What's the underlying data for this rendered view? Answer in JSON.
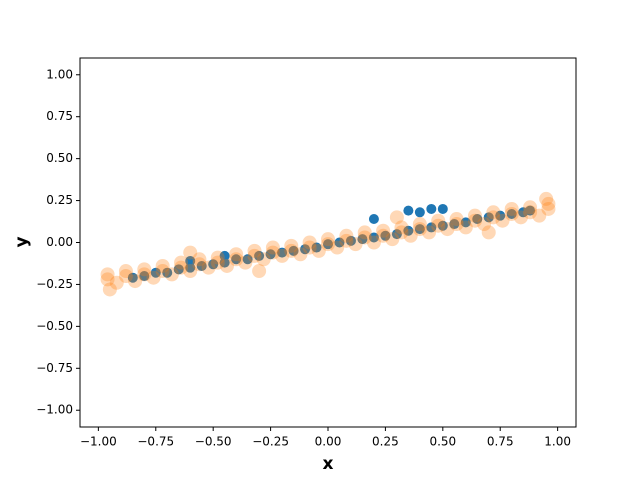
{
  "chart_data": {
    "type": "scatter",
    "x_label": "x",
    "y_label": "y",
    "xlim": [
      -1.08,
      1.08
    ],
    "ylim": [
      -1.1,
      1.1
    ],
    "xticks": [
      {
        "value": -1,
        "label": "−1.00"
      },
      {
        "value": -0.75,
        "label": "−0.75"
      },
      {
        "value": -0.5,
        "label": "−0.50"
      },
      {
        "value": -0.25,
        "label": "−0.25"
      },
      {
        "value": 0,
        "label": "0.00"
      },
      {
        "value": 0.25,
        "label": "0.25"
      },
      {
        "value": 0.5,
        "label": "0.50"
      },
      {
        "value": 0.75,
        "label": "0.75"
      },
      {
        "value": 1,
        "label": "1.00"
      }
    ],
    "yticks": [
      {
        "value": -1,
        "label": "−1.00"
      },
      {
        "value": -0.75,
        "label": "−0.75"
      },
      {
        "value": -0.5,
        "label": "−0.50"
      },
      {
        "value": -0.25,
        "label": "−0.25"
      },
      {
        "value": 0,
        "label": "0.00"
      },
      {
        "value": 0.25,
        "label": "0.25"
      },
      {
        "value": 0.5,
        "label": "0.50"
      },
      {
        "value": 0.75,
        "label": "0.75"
      },
      {
        "value": 1,
        "label": "1.00"
      }
    ],
    "grid": false,
    "series": [
      {
        "color": "#1f77b4",
        "alpha": 1,
        "x": [
          -0.85,
          -0.8,
          -0.75,
          -0.7,
          -0.65,
          -0.6,
          -0.55,
          -0.5,
          -0.45,
          -0.4,
          -0.35,
          -0.3,
          -0.25,
          -0.2,
          -0.15,
          -0.1,
          -0.05,
          0,
          0.05,
          0.1,
          0.15,
          0.2,
          0.25,
          0.3,
          0.35,
          0.4,
          0.45,
          0.5,
          0.55,
          0.6,
          0.65,
          0.7,
          0.75,
          0.8,
          0.85,
          0.88,
          0.2,
          0.35,
          0.4,
          0.45,
          0.5,
          -0.6,
          -0.45
        ],
        "y": [
          -0.21,
          -0.2,
          -0.18,
          -0.18,
          -0.16,
          -0.15,
          -0.14,
          -0.13,
          -0.12,
          -0.1,
          -0.1,
          -0.08,
          -0.07,
          -0.06,
          -0.05,
          -0.04,
          -0.03,
          -0.01,
          0,
          0.01,
          0.02,
          0.03,
          0.04,
          0.05,
          0.07,
          0.08,
          0.09,
          0.1,
          0.11,
          0.12,
          0.14,
          0.15,
          0.16,
          0.17,
          0.18,
          0.19,
          0.14,
          0.19,
          0.18,
          0.2,
          0.2,
          -0.11,
          -0.08
        ]
      },
      {
        "color": "#ff7f0e",
        "alpha": 0.3,
        "x": [
          -0.96,
          -0.88,
          -0.8,
          -0.72,
          -0.64,
          -0.56,
          -0.48,
          -0.4,
          -0.32,
          -0.24,
          -0.16,
          -0.08,
          0,
          0.08,
          0.16,
          0.24,
          0.32,
          0.4,
          0.48,
          0.56,
          0.64,
          0.72,
          0.8,
          0.88,
          0.96,
          -0.92,
          -0.84,
          -0.76,
          -0.68,
          -0.6,
          -0.52,
          -0.44,
          -0.36,
          -0.28,
          -0.2,
          -0.12,
          -0.04,
          0.04,
          0.12,
          0.2,
          0.28,
          0.36,
          0.44,
          0.52,
          0.6,
          0.68,
          0.76,
          0.84,
          0.92,
          -0.96,
          -0.88,
          -0.8,
          -0.72,
          -0.64,
          -0.56,
          -0.48,
          -0.4,
          -0.32,
          -0.24,
          -0.16,
          -0.08,
          0,
          0.08,
          0.16,
          0.24,
          0.32,
          0.4,
          0.48,
          0.56,
          0.64,
          0.72,
          0.8,
          0.88,
          0.96,
          -0.95,
          -0.6,
          0.3,
          0.7,
          -0.3,
          0.95
        ],
        "y": [
          -0.19,
          -0.17,
          -0.16,
          -0.14,
          -0.12,
          -0.1,
          -0.09,
          -0.07,
          -0.05,
          -0.03,
          -0.02,
          0,
          0.02,
          0.04,
          0.06,
          0.07,
          0.09,
          0.11,
          0.13,
          0.14,
          0.16,
          0.18,
          0.2,
          0.21,
          0.23,
          -0.24,
          -0.23,
          -0.21,
          -0.19,
          -0.17,
          -0.15,
          -0.14,
          -0.12,
          -0.1,
          -0.08,
          -0.07,
          -0.05,
          -0.03,
          -0.01,
          0,
          0.02,
          0.04,
          0.06,
          0.08,
          0.09,
          0.11,
          0.13,
          0.15,
          0.16,
          -0.22,
          -0.2,
          -0.19,
          -0.17,
          -0.15,
          -0.13,
          -0.12,
          -0.1,
          -0.08,
          -0.06,
          -0.05,
          -0.03,
          -0.01,
          0.01,
          0.03,
          0.04,
          0.06,
          0.08,
          0.1,
          0.11,
          0.13,
          0.15,
          0.17,
          0.18,
          0.2,
          -0.28,
          -0.06,
          0.15,
          0.06,
          -0.17,
          0.26
        ]
      }
    ]
  }
}
